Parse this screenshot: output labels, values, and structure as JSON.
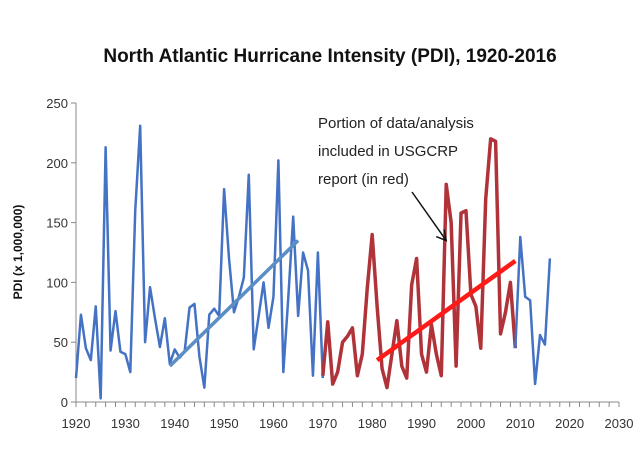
{
  "chart_data": {
    "type": "line",
    "title": "North Atlantic Hurricane Intensity (PDI), 1920-2016",
    "xlabel": "",
    "ylabel": "PDI (x 1,000,000)",
    "xlim": [
      1920,
      2030
    ],
    "ylim": [
      0,
      250
    ],
    "x_ticks": [
      "1920",
      "1930",
      "1940",
      "1950",
      "1960",
      "1970",
      "1980",
      "1990",
      "2000",
      "2010",
      "2020",
      "2030"
    ],
    "y_ticks": [
      "0",
      "50",
      "100",
      "150",
      "200",
      "250"
    ],
    "grid": false,
    "colors": {
      "blue": "#4472c4",
      "darkred": "#b0333a",
      "red": "#ff1a1a",
      "bluetrend": "#5b8ec4"
    },
    "series": [
      {
        "color": "blue",
        "x": [
          1920,
          1921,
          1922,
          1923,
          1924,
          1925,
          1926,
          1927,
          1928,
          1929,
          1930,
          1931,
          1932,
          1933,
          1934,
          1935,
          1936,
          1937,
          1938,
          1939,
          1940,
          1941,
          1942,
          1943,
          1944,
          1945,
          1946,
          1947,
          1948,
          1949,
          1950,
          1951,
          1952,
          1953,
          1954,
          1955,
          1956,
          1957,
          1958,
          1959,
          1960,
          1961,
          1962,
          1963,
          1964,
          1965,
          1966,
          1967,
          1968,
          1969,
          1970
        ],
        "y": [
          20,
          73,
          45,
          35,
          80,
          3,
          213,
          43,
          76,
          42,
          40,
          25,
          160,
          231,
          50,
          96,
          70,
          46,
          70,
          32,
          44,
          37,
          42,
          79,
          82,
          38,
          12,
          73,
          78,
          72,
          178,
          120,
          75,
          88,
          104,
          190,
          44,
          72,
          100,
          62,
          88,
          202,
          25,
          87,
          155,
          72,
          125,
          110,
          22,
          125,
          20
        ]
      },
      {
        "color": "darkred",
        "x": [
          1970,
          1971,
          1972,
          1973,
          1974,
          1975,
          1976,
          1977,
          1978,
          1979,
          1980,
          1981,
          1982,
          1983,
          1984,
          1985,
          1986,
          1987,
          1988,
          1989,
          1990,
          1991,
          1992,
          1993,
          1994,
          1995,
          1996,
          1997,
          1998,
          1999,
          2000,
          2001,
          2002,
          2003,
          2004,
          2005,
          2006,
          2007,
          2008,
          2009
        ],
        "y": [
          22,
          67,
          15,
          25,
          50,
          55,
          62,
          22,
          40,
          95,
          140,
          80,
          28,
          12,
          40,
          68,
          30,
          20,
          98,
          120,
          40,
          25,
          65,
          40,
          22,
          182,
          150,
          30,
          158,
          160,
          90,
          80,
          45,
          170,
          220,
          218,
          57,
          75,
          100,
          45
        ]
      },
      {
        "color": "blue",
        "x": [
          2009,
          2010,
          2011,
          2012,
          2013,
          2014,
          2015,
          2016
        ],
        "y": [
          45,
          138,
          88,
          85,
          15,
          56,
          48,
          120
        ]
      }
    ],
    "trendlines": [
      {
        "color": "bluetrend",
        "x": [
          1939,
          1965
        ],
        "y": [
          30,
          135
        ]
      },
      {
        "color": "red",
        "x": [
          1981,
          2009
        ],
        "y": [
          35,
          118
        ]
      }
    ],
    "annotation": {
      "lines": [
        "Portion of data/analysis",
        "included in USGCRP",
        "report (in red)"
      ],
      "arrow_to": [
        1995,
        135
      ]
    }
  }
}
